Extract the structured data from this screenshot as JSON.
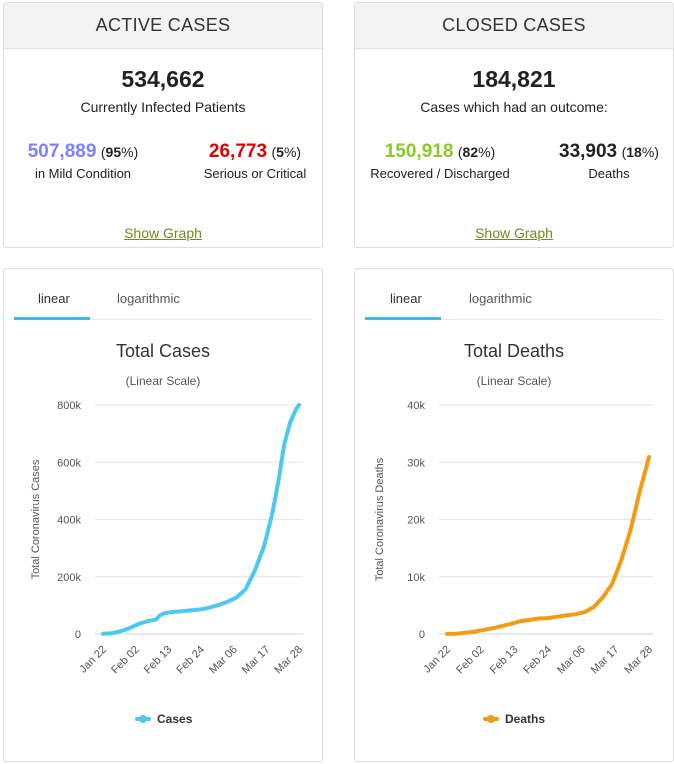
{
  "active": {
    "title": "ACTIVE CASES",
    "total": "534,662",
    "total_label": "Currently Infected Patients",
    "mild_value": "507,889",
    "mild_pct": "95",
    "mild_label": "in Mild Condition",
    "serious_value": "26,773",
    "serious_pct": "5",
    "serious_label": "Serious or Critical",
    "show_graph": "Show Graph"
  },
  "closed": {
    "title": "CLOSED CASES",
    "total": "184,821",
    "total_label": "Cases which had an outcome:",
    "recovered_value": "150,918",
    "recovered_pct": "82",
    "recovered_label": "Recovered / Discharged",
    "deaths_value": "33,903",
    "deaths_pct": "18",
    "deaths_label": "Deaths",
    "show_graph": "Show Graph"
  },
  "tabs": {
    "linear": "linear",
    "log": "logarithmic"
  },
  "colors": {
    "mild": "#8080ff",
    "serious": "#e00000",
    "recovered": "#8ac926",
    "link": "#6b8e23",
    "cases": "#4cc9f0",
    "deaths": "#f39c12",
    "tab": "#3fb9e6"
  },
  "chart_data": [
    {
      "type": "line",
      "title": "Total Cases",
      "subtitle": "(Linear Scale)",
      "ylabel": "Total Coronavirus Cases",
      "xlabel": "",
      "ylim": [
        0,
        800000
      ],
      "yticks": [
        0,
        200000,
        400000,
        600000,
        800000
      ],
      "ytick_labels": [
        "0",
        "200k",
        "400k",
        "600k",
        "800k"
      ],
      "x_tick_labels": [
        "Jan 22",
        "Feb 02",
        "Feb 13",
        "Feb 24",
        "Mar 06",
        "Mar 17",
        "Mar 28"
      ],
      "x_tick_days": [
        0,
        11,
        22,
        33,
        44,
        55,
        66
      ],
      "legend": "Cases",
      "legend_position": "bottom",
      "series": [
        {
          "name": "Cases",
          "color": "#4cc9f0",
          "x_days": [
            0,
            3,
            6,
            9,
            12,
            15,
            18,
            19,
            20,
            21,
            24,
            27,
            30,
            33,
            36,
            39,
            42,
            45,
            48,
            51,
            54,
            55,
            57,
            59,
            61,
            63,
            65,
            66
          ],
          "values": [
            555,
            2800,
            9800,
            20600,
            34800,
            44800,
            51200,
            64000,
            69000,
            73300,
            78000,
            80100,
            82700,
            86000,
            93000,
            101500,
            113000,
            128000,
            156000,
            219000,
            300000,
            337000,
            421000,
            530000,
            662000,
            738000,
            785000,
            800000
          ]
        }
      ]
    },
    {
      "type": "line",
      "title": "Total Deaths",
      "subtitle": "(Linear Scale)",
      "ylabel": "Total Coronavirus Deaths",
      "xlabel": "",
      "ylim": [
        0,
        40000
      ],
      "yticks": [
        0,
        10000,
        20000,
        30000,
        40000
      ],
      "ytick_labels": [
        "0",
        "10k",
        "20k",
        "30k",
        "40k"
      ],
      "x_tick_labels": [
        "Jan 22",
        "Feb 02",
        "Feb 13",
        "Feb 24",
        "Mar 06",
        "Mar 17",
        "Mar 28"
      ],
      "x_tick_days": [
        0,
        11,
        22,
        33,
        44,
        55,
        66
      ],
      "legend": "Deaths",
      "legend_position": "bottom",
      "series": [
        {
          "name": "Deaths",
          "color": "#f39c12",
          "x_days": [
            0,
            3,
            6,
            9,
            12,
            15,
            18,
            21,
            24,
            27,
            30,
            33,
            36,
            39,
            42,
            45,
            48,
            51,
            54,
            57,
            60,
            63,
            66
          ],
          "values": [
            17,
            56,
            213,
            427,
            723,
            1018,
            1383,
            1775,
            2250,
            2469,
            2714,
            2770,
            3015,
            3254,
            3460,
            3830,
            4720,
            6440,
            8810,
            13000,
            18200,
            24900,
            30900
          ]
        }
      ]
    }
  ]
}
